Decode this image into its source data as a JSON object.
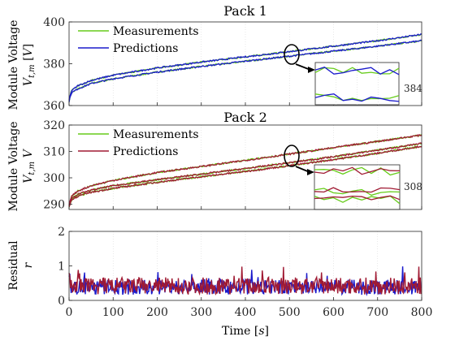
{
  "chart_data": [
    {
      "type": "line",
      "title": "Pack 1",
      "ylabel_line1": "Module Voltage",
      "ylabel_line2": "V_{t,m} [V]",
      "xlim": [
        0,
        800
      ],
      "ylim": [
        360,
        400
      ],
      "yticks": [
        360,
        380,
        400
      ],
      "xticks": [
        0,
        100,
        200,
        300,
        400,
        500,
        600,
        700,
        800
      ],
      "xgrid": true,
      "legend_position": "top-left",
      "series": [
        {
          "name": "Measurements",
          "color": "#66cc1a",
          "x": [
            0,
            5,
            20,
            50,
            100,
            200,
            300,
            400,
            500,
            600,
            700,
            800
          ],
          "y": [
            362,
            366,
            368,
            370.5,
            372.8,
            376,
            378.7,
            381.2,
            383.6,
            386,
            388.4,
            391
          ]
        },
        {
          "name": "Measurements",
          "color": "#66cc1a",
          "x": [
            0,
            5,
            20,
            50,
            100,
            200,
            300,
            400,
            500,
            600,
            700,
            800
          ],
          "y": [
            362.5,
            367,
            369.5,
            372,
            374.5,
            378,
            380.8,
            383.3,
            385.8,
            388.4,
            391,
            394
          ]
        },
        {
          "name": "Predictions",
          "color": "#1a1acc",
          "x": [
            0,
            5,
            20,
            50,
            100,
            200,
            300,
            400,
            500,
            600,
            700,
            800
          ],
          "y": [
            362,
            366,
            368,
            370.5,
            372.8,
            376,
            378.7,
            381.2,
            383.6,
            386,
            388.4,
            391
          ]
        },
        {
          "name": "Predictions",
          "color": "#1a1acc",
          "x": [
            0,
            5,
            20,
            50,
            100,
            200,
            300,
            400,
            500,
            600,
            700,
            800
          ],
          "y": [
            362.5,
            367,
            369.5,
            372,
            374.5,
            378,
            380.8,
            383.3,
            385.8,
            388.4,
            391,
            394
          ]
        }
      ],
      "inset": {
        "label": "384",
        "zoom_x": 500
      }
    },
    {
      "type": "line",
      "title": "Pack 2",
      "ylabel_line1": "Module Voltage",
      "ylabel_line2": "V_{t,m} V",
      "xlim": [
        0,
        800
      ],
      "ylim": [
        288,
        320
      ],
      "yticks": [
        290,
        300,
        310,
        320
      ],
      "xticks": [
        0,
        100,
        200,
        300,
        400,
        500,
        600,
        700,
        800
      ],
      "xgrid": true,
      "legend_position": "top-left",
      "series": [
        {
          "name": "Measurements",
          "color": "#66cc1a",
          "x": [
            0,
            5,
            20,
            50,
            100,
            200,
            300,
            400,
            500,
            600,
            700,
            800
          ],
          "y": [
            289,
            291.5,
            293,
            294.5,
            296,
            298.3,
            300.4,
            302.4,
            304.6,
            306.9,
            309.3,
            312
          ]
        },
        {
          "name": "Measurements",
          "color": "#66cc1a",
          "x": [
            0,
            5,
            20,
            50,
            100,
            200,
            300,
            400,
            500,
            600,
            700,
            800
          ],
          "y": [
            289,
            292,
            293.8,
            295.3,
            297,
            299.3,
            301.4,
            303.5,
            305.7,
            308,
            310.5,
            313
          ]
        },
        {
          "name": "Measurements",
          "color": "#66cc1a",
          "x": [
            0,
            5,
            20,
            50,
            100,
            200,
            300,
            400,
            500,
            600,
            700,
            800
          ],
          "y": [
            289.5,
            293,
            295,
            297,
            299,
            302,
            304.3,
            306.6,
            309,
            311.4,
            313.8,
            316.2
          ]
        },
        {
          "name": "Predictions",
          "color": "#a01a33",
          "x": [
            0,
            5,
            20,
            50,
            100,
            200,
            300,
            400,
            500,
            600,
            700,
            800
          ],
          "y": [
            289,
            291.5,
            293,
            294.5,
            296,
            298.3,
            300.4,
            302.4,
            304.6,
            306.9,
            309.3,
            312
          ]
        },
        {
          "name": "Predictions",
          "color": "#a01a33",
          "x": [
            0,
            5,
            20,
            50,
            100,
            200,
            300,
            400,
            500,
            600,
            700,
            800
          ],
          "y": [
            289,
            292,
            293.8,
            295.3,
            297,
            299.3,
            301.4,
            303.5,
            305.7,
            308,
            310.5,
            313
          ]
        },
        {
          "name": "Predictions",
          "color": "#a01a33",
          "x": [
            0,
            5,
            20,
            50,
            100,
            200,
            300,
            400,
            500,
            600,
            700,
            800
          ],
          "y": [
            289.5,
            293,
            295,
            297,
            299,
            302,
            304.3,
            306.6,
            309,
            311.4,
            313.8,
            316.2
          ]
        }
      ],
      "inset": {
        "label": "308",
        "zoom_x": 500
      }
    },
    {
      "type": "line",
      "title": "",
      "ylabel_line1": "Residual",
      "ylabel_line2": "r",
      "xlabel": "Time [s]",
      "xlim": [
        0,
        800
      ],
      "ylim": [
        0,
        2
      ],
      "yticks": [
        0,
        1,
        2
      ],
      "xticks": [
        0,
        100,
        200,
        300,
        400,
        500,
        600,
        700,
        800
      ],
      "xgrid": true,
      "series": [
        {
          "name": "",
          "color": "#1a1acc",
          "mean": 0.38,
          "spread": 0.22
        },
        {
          "name": "",
          "color": "#a01a33",
          "mean": 0.42,
          "spread": 0.25
        }
      ]
    }
  ]
}
